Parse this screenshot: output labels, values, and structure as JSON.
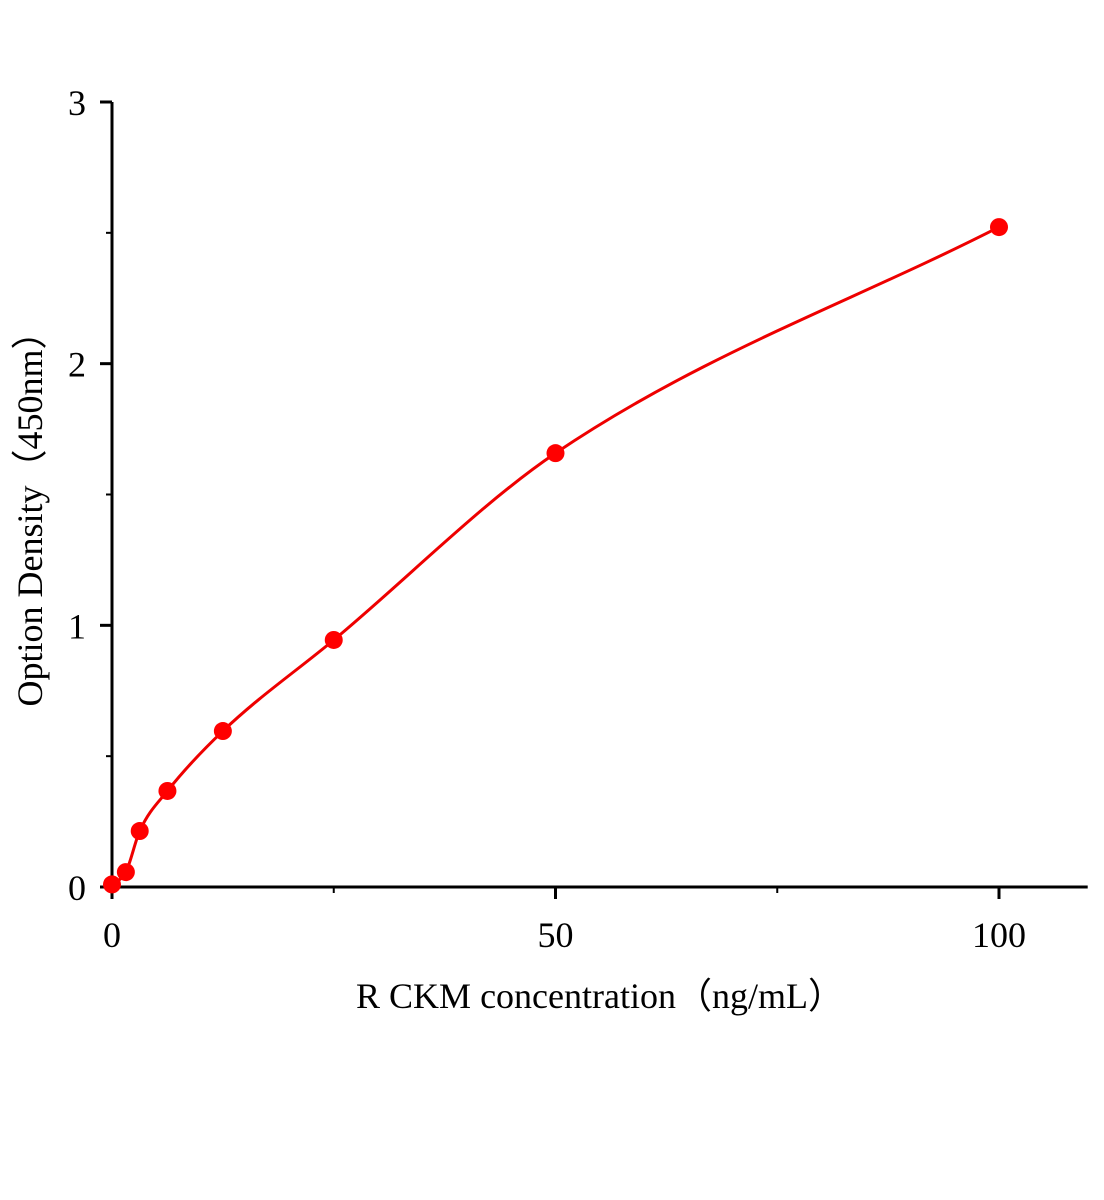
{
  "chart_data": {
    "type": "scatter",
    "title": "",
    "xlabel": "R CKM concentration（ng/mL）",
    "ylabel": "Option Density（450nm）",
    "xlim": [
      0,
      110
    ],
    "ylim": [
      0,
      3
    ],
    "x_ticks": [
      "0",
      "50",
      "100"
    ],
    "x_tick_values": [
      0,
      50,
      100
    ],
    "x_minor_tick_values": [
      25,
      75
    ],
    "y_ticks": [
      "0",
      "1",
      "2",
      "3"
    ],
    "y_tick_values": [
      0,
      1,
      2,
      3
    ],
    "y_minor_tick_values": [
      0.5,
      1.5,
      2.5
    ],
    "grid": false,
    "legend": "none",
    "series": [
      {
        "x": [
          0,
          1.5625,
          3.125,
          6.25,
          12.5,
          25,
          50,
          100
        ],
        "y": [
          0.01,
          0.057,
          0.214,
          0.367,
          0.596,
          0.944,
          1.658,
          2.522
        ],
        "marker_color": "#ff0000",
        "fit_line": true,
        "line_color": "#ee0000"
      }
    ]
  }
}
